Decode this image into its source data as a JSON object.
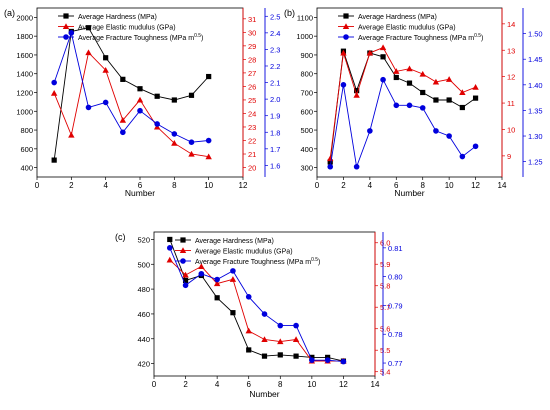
{
  "figure": {
    "panels": [
      "(a)",
      "(b)",
      "(c)"
    ]
  },
  "chart_data": [
    {
      "panel": "(a)",
      "type": "line",
      "xlabel": "Number",
      "xlim": [
        0,
        12
      ],
      "xticks": [
        0,
        2,
        4,
        6,
        8,
        10,
        12
      ],
      "legend_position": "top-left",
      "axes": [
        {
          "id": "hardness",
          "side": "left",
          "color": "#000000",
          "lim": [
            300,
            2100
          ],
          "ticks": [
            400,
            600,
            800,
            1000,
            1200,
            1400,
            1600,
            1800,
            2000
          ]
        },
        {
          "id": "elastic",
          "side": "right",
          "color": "#e00000",
          "lim": [
            19.3,
            31.8
          ],
          "ticks": [
            20,
            21,
            22,
            23,
            24,
            25,
            26,
            27,
            28,
            29,
            30,
            31
          ]
        },
        {
          "id": "toughness",
          "side": "right-outer",
          "color": "#0000dd",
          "lim": [
            1.53,
            2.55
          ],
          "ticks": [
            "1.6",
            "1.7",
            "1.8",
            "1.9",
            "2.0",
            "2.1",
            "2.2",
            "2.3",
            "2.4",
            "2.5"
          ]
        }
      ],
      "series": [
        {
          "name": "Average Hardness (MPa)",
          "axis": "hardness",
          "marker": "square",
          "x": [
            1,
            2,
            3,
            4,
            5,
            6,
            7,
            8,
            9,
            10
          ],
          "values": [
            480,
            1850,
            1890,
            1570,
            1340,
            1240,
            1160,
            1120,
            1170,
            1370
          ]
        },
        {
          "name": "Average Elastic mudulus (GPa)",
          "axis": "elastic",
          "marker": "triangle",
          "x": [
            1,
            2,
            3,
            4,
            5,
            6,
            7,
            8,
            9,
            10
          ],
          "values": [
            25.5,
            22.4,
            28.5,
            27.2,
            23.5,
            25.0,
            23.0,
            21.8,
            21.0,
            20.8
          ]
        },
        {
          "name": "Average Fracture Toughness (MPa m",
          "name_sup": "0.5",
          "name_suffix": ")",
          "axis": "toughness",
          "marker": "circle",
          "x": [
            1,
            2,
            3,
            4,
            5,
            6,
            7,
            8,
            9,
            10
          ],
          "values": [
            2.1,
            2.4,
            1.95,
            1.98,
            1.8,
            1.93,
            1.85,
            1.79,
            1.74,
            1.75
          ]
        }
      ]
    },
    {
      "panel": "(b)",
      "type": "line",
      "xlabel": "Number",
      "xlim": [
        0,
        14
      ],
      "xticks": [
        0,
        2,
        4,
        6,
        8,
        10,
        12,
        14
      ],
      "legend_position": "top-left",
      "axes": [
        {
          "id": "hardness",
          "side": "left",
          "color": "#000000",
          "lim": [
            250,
            1150
          ],
          "ticks": [
            300,
            400,
            500,
            600,
            700,
            800,
            900,
            1000,
            1100
          ]
        },
        {
          "id": "elastic",
          "side": "right",
          "color": "#e00000",
          "lim": [
            8.2,
            14.6
          ],
          "ticks": [
            9,
            10,
            11,
            12,
            13,
            14
          ]
        },
        {
          "id": "toughness",
          "side": "right-outer",
          "color": "#0000dd",
          "lim": [
            1.22,
            1.55
          ],
          "ticks": [
            "1.25",
            "1.30",
            "1.35",
            "1.40",
            "1.45",
            "1.50"
          ]
        }
      ],
      "series": [
        {
          "name": "Average Hardness (MPa)",
          "axis": "hardness",
          "marker": "square",
          "x": [
            1,
            2,
            3,
            4,
            5,
            6,
            7,
            8,
            9,
            10,
            11,
            12
          ],
          "values": [
            330,
            920,
            710,
            910,
            890,
            780,
            750,
            700,
            660,
            660,
            620,
            670
          ]
        },
        {
          "name": "Average Elastic mudulus (GPa)",
          "axis": "elastic",
          "marker": "triangle",
          "x": [
            1,
            2,
            3,
            4,
            5,
            6,
            7,
            8,
            9,
            10,
            11,
            12
          ],
          "values": [
            8.9,
            12.9,
            11.3,
            12.9,
            13.1,
            12.2,
            12.3,
            12.1,
            11.8,
            11.9,
            11.4,
            11.6
          ]
        },
        {
          "name": "Average Fracture Toughness (MPa m",
          "name_sup": "0.5",
          "name_suffix": ")",
          "axis": "toughness",
          "marker": "circle",
          "x": [
            1,
            2,
            3,
            4,
            5,
            6,
            7,
            8,
            9,
            10,
            11,
            12
          ],
          "values": [
            1.24,
            1.4,
            1.24,
            1.31,
            1.41,
            1.36,
            1.36,
            1.355,
            1.31,
            1.3,
            1.26,
            1.28
          ]
        }
      ]
    },
    {
      "panel": "(c)",
      "type": "line",
      "xlabel": "Number",
      "xlim": [
        0,
        14
      ],
      "xticks": [
        0,
        2,
        4,
        6,
        8,
        10,
        12,
        14
      ],
      "legend_position": "top-left",
      "axes": [
        {
          "id": "hardness",
          "side": "left",
          "color": "#000000",
          "lim": [
            410,
            526
          ],
          "ticks": [
            420,
            440,
            460,
            480,
            500,
            520
          ]
        },
        {
          "id": "elastic",
          "side": "right",
          "color": "#e00000",
          "lim": [
            5.38,
            6.05
          ],
          "ticks": [
            "5.4",
            "5.5",
            "5.6",
            "5.7",
            "5.8",
            "5.9",
            "6.0"
          ]
        },
        {
          "id": "toughness",
          "side": "right-outer",
          "color": "#0000dd",
          "lim": [
            0.7655,
            0.8155
          ],
          "ticks": [
            "0.77",
            "0.78",
            "0.79",
            "0.80",
            "0.81"
          ]
        }
      ],
      "series": [
        {
          "name": "Average Hardness (MPa)",
          "axis": "hardness",
          "marker": "square",
          "x": [
            1,
            2,
            3,
            4,
            5,
            6,
            7,
            8,
            9,
            10,
            11,
            12
          ],
          "values": [
            520,
            487,
            491,
            473,
            461,
            431,
            426,
            427,
            426,
            425,
            425,
            422
          ]
        },
        {
          "name": "Average Elastic mudulus (GPa)",
          "axis": "elastic",
          "marker": "triangle",
          "x": [
            1,
            2,
            3,
            4,
            5,
            6,
            7,
            8,
            9,
            10,
            11,
            12
          ],
          "values": [
            5.92,
            5.85,
            5.89,
            5.81,
            5.83,
            5.59,
            5.55,
            5.54,
            5.55,
            5.45,
            5.45,
            5.45
          ]
        },
        {
          "name": "Average Fracture Toughness (MPa m",
          "name_sup": "0.5",
          "name_suffix": ")",
          "axis": "toughness",
          "marker": "circle",
          "x": [
            1,
            2,
            3,
            4,
            5,
            6,
            7,
            8,
            9,
            10,
            11,
            12
          ],
          "values": [
            0.81,
            0.797,
            0.801,
            0.799,
            0.802,
            0.793,
            0.787,
            0.783,
            0.783,
            0.771,
            0.771,
            0.7705
          ]
        }
      ]
    }
  ]
}
